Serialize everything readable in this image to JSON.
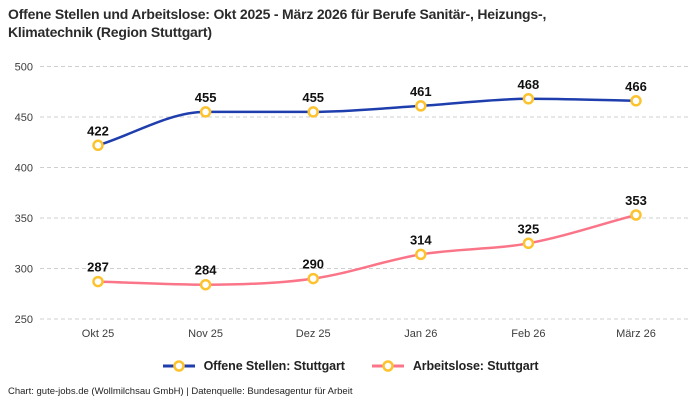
{
  "title": "Offene Stellen und Arbeitslose: Okt 2025 - März 2026 für Berufe Sanitär-, Heizungs-,\nKlimatechnik (Region Stuttgart)",
  "footer": "Chart: gute-jobs.de (Wollmilchsau GmbH) | Datenquelle: Bundesagentur für Arbeit",
  "colors": {
    "series_blue": "#1f3eae",
    "series_pink": "#fb7589",
    "marker_gold": "#fcc32f",
    "marker_fill": "#ffffff",
    "grid": "#cfcfcf",
    "title_text": "#2b2b2b",
    "tick_text": "#3d3d3d",
    "label_text": "#111111"
  },
  "chart_data": {
    "type": "line",
    "categories": [
      "Okt 25",
      "Nov 25",
      "Dez 25",
      "Jan 26",
      "Feb 26",
      "März 26"
    ],
    "series": [
      {
        "name": "Offene Stellen: Stuttgart",
        "color": "#1f3eae",
        "values": [
          422,
          455,
          455,
          461,
          468,
          466
        ]
      },
      {
        "name": "Arbeitslose: Stuttgart",
        "color": "#fb7589",
        "values": [
          287,
          284,
          290,
          314,
          325,
          353
        ]
      }
    ],
    "title": "Offene Stellen und Arbeitslose: Okt 2025 - März 2026 für Berufe Sanitär-, Heizungs-, Klimatechnik (Region Stuttgart)",
    "xlabel": "",
    "ylabel": "",
    "ylim": [
      250,
      500
    ],
    "yticks": [
      250,
      300,
      350,
      400,
      450,
      500
    ],
    "grid": "horizontal-dashed",
    "curve": "monotone",
    "data_labels": true,
    "legend_position": "bottom",
    "marker": {
      "shape": "open-circle",
      "fill": "#ffffff",
      "stroke": "#fcc32f"
    }
  }
}
